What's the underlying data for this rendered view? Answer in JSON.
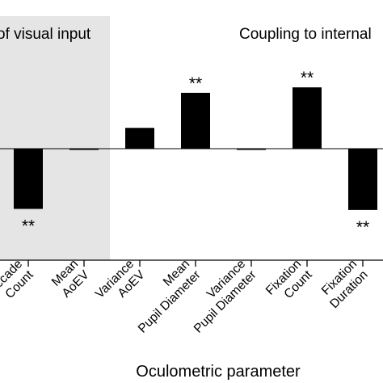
{
  "chart_data": {
    "type": "bar",
    "title": "",
    "xlabel": "Oculometric parameter",
    "ylabel": "",
    "categories": [
      [
        "Saccade",
        "Count"
      ],
      [
        "Mean",
        "AoEV"
      ],
      [
        "Variance",
        "AoEV"
      ],
      [
        "Mean",
        "Pupil Diameter"
      ],
      [
        "Variance",
        "Pupil Diameter"
      ],
      [
        "Fixation",
        "Count"
      ],
      [
        "Fixation",
        "Duration"
      ]
    ],
    "values": [
      -0.55,
      -0.01,
      0.19,
      0.51,
      0.0,
      0.56,
      -0.56
    ],
    "significance": [
      "**",
      "",
      "",
      "**",
      "",
      "**",
      "**"
    ],
    "ylim": [
      -1.0,
      1.35
    ],
    "grid": false,
    "regions": [
      {
        "label": "of visual input",
        "shaded": true,
        "shade_color": "#e5e5e5"
      },
      {
        "label": "Coupling to internal",
        "shaded": false
      }
    ],
    "colors": {
      "bar": "#000000",
      "shade": "#e5e5e5",
      "axis": "#000000"
    }
  }
}
